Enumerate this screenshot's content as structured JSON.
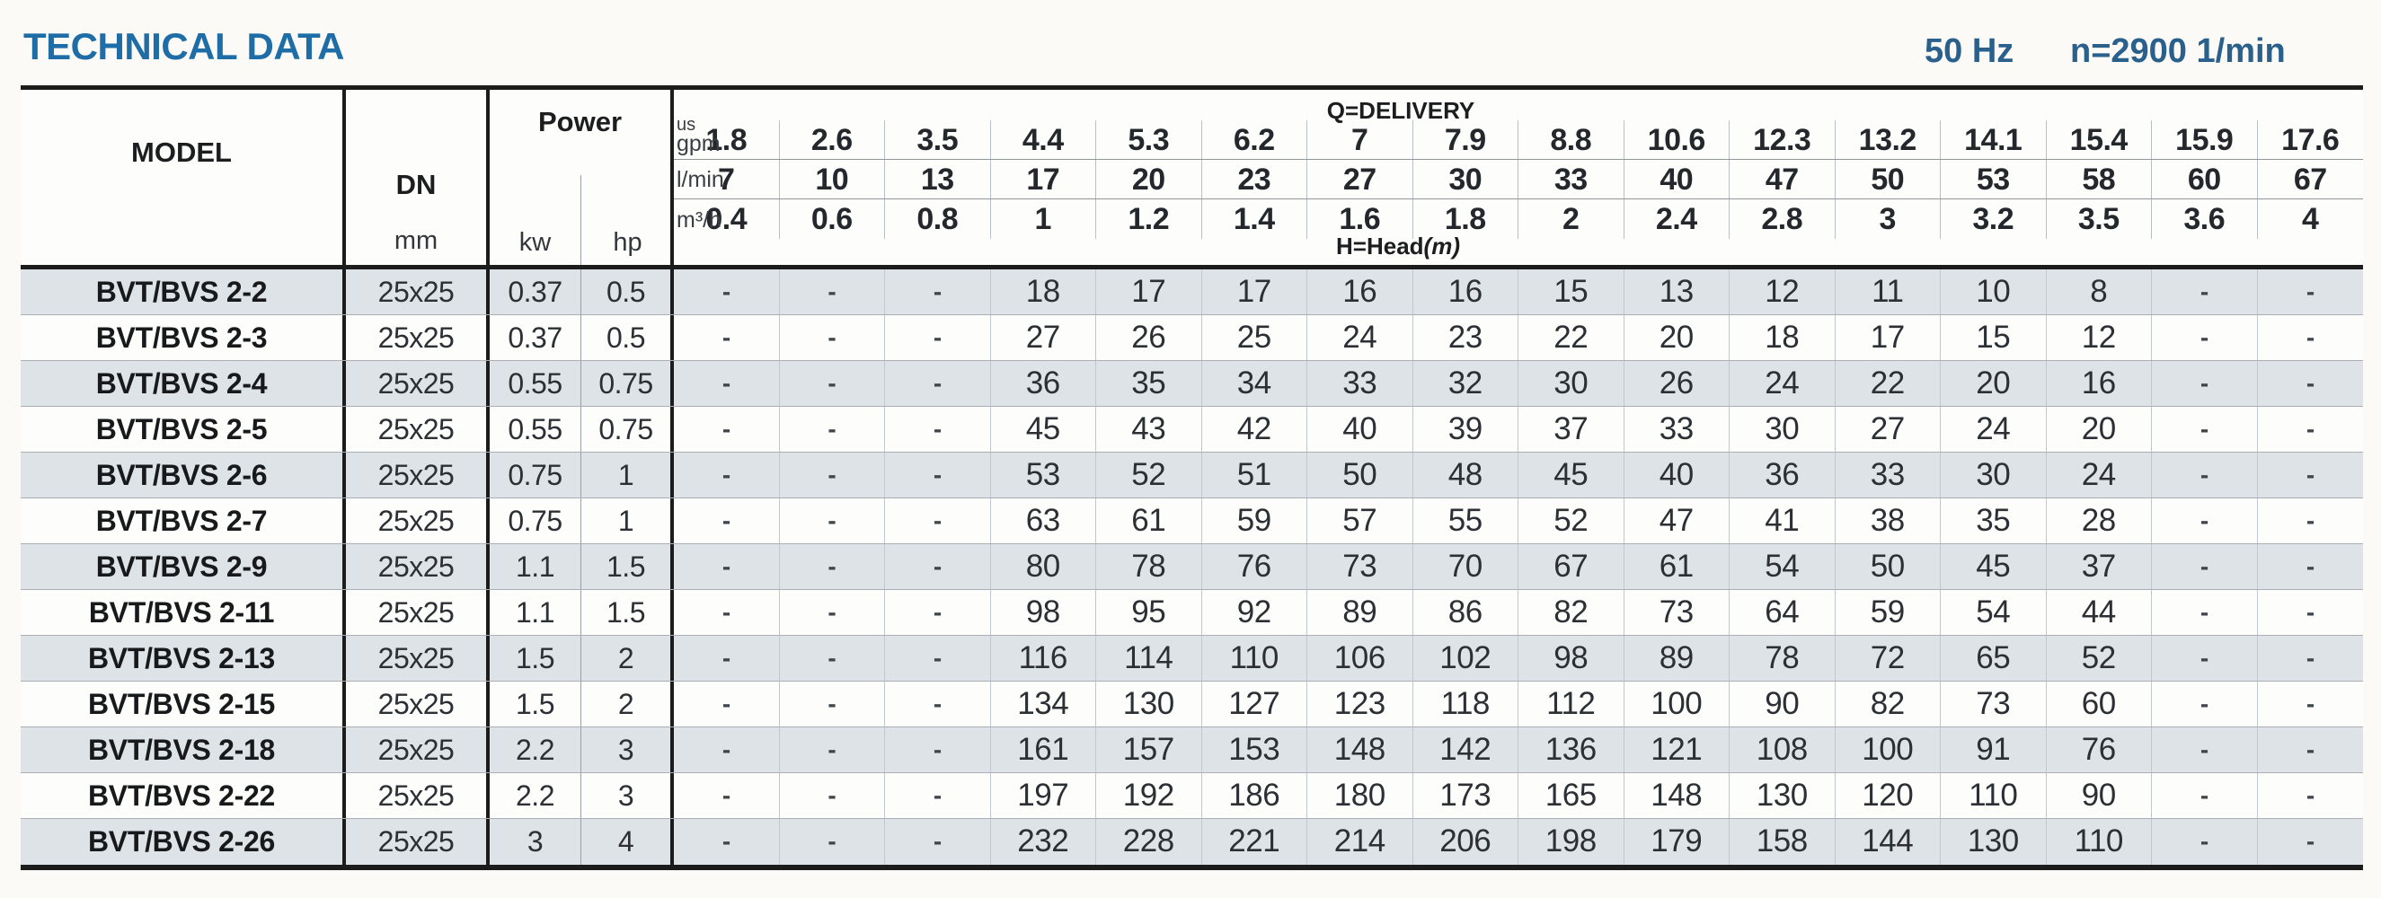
{
  "page": {
    "title": "TECHNICAL DATA",
    "frequency": "50 Hz",
    "speed": "n=2900 1/min"
  },
  "colors": {
    "accent_blue": "#1f6da6",
    "secondary_blue": "#2a608c",
    "row_shade": "#dee3e8",
    "border_dark": "#1c1c1c",
    "row_line": "#a9afb5",
    "column_line": "#c2c8cd"
  },
  "table": {
    "headers": {
      "model": "MODEL",
      "dn": "DN",
      "dn_unit": "mm",
      "power": "Power",
      "power_kw": "kw",
      "power_hp": "hp",
      "delivery_title": "Q=DELIVERY",
      "head_label": "H=Head",
      "head_unit": "(m)",
      "unit_rows": [
        {
          "label_top": "us",
          "label": "gpm",
          "values": [
            "1.8",
            "2.6",
            "3.5",
            "4.4",
            "5.3",
            "6.2",
            "7",
            "7.9",
            "8.8",
            "10.6",
            "12.3",
            "13.2",
            "14.1",
            "15.4",
            "15.9",
            "17.6"
          ]
        },
        {
          "label": "l/min",
          "values": [
            "7",
            "10",
            "13",
            "17",
            "20",
            "23",
            "27",
            "30",
            "33",
            "40",
            "47",
            "50",
            "53",
            "58",
            "60",
            "67"
          ]
        },
        {
          "label": "m³/h",
          "values": [
            "0.4",
            "0.6",
            "0.8",
            "1",
            "1.2",
            "1.4",
            "1.6",
            "1.8",
            "2",
            "2.4",
            "2.8",
            "3",
            "3.2",
            "3.5",
            "3.6",
            "4"
          ]
        }
      ]
    },
    "rows": [
      {
        "model": "BVT/BVS 2-2",
        "dn": "25x25",
        "kw": "0.37",
        "hp": "0.5",
        "head": [
          "-",
          "-",
          "-",
          "18",
          "17",
          "17",
          "16",
          "16",
          "15",
          "13",
          "12",
          "11",
          "10",
          "8",
          "-",
          "-"
        ]
      },
      {
        "model": "BVT/BVS 2-3",
        "dn": "25x25",
        "kw": "0.37",
        "hp": "0.5",
        "head": [
          "-",
          "-",
          "-",
          "27",
          "26",
          "25",
          "24",
          "23",
          "22",
          "20",
          "18",
          "17",
          "15",
          "12",
          "-",
          "-"
        ]
      },
      {
        "model": "BVT/BVS 2-4",
        "dn": "25x25",
        "kw": "0.55",
        "hp": "0.75",
        "head": [
          "-",
          "-",
          "-",
          "36",
          "35",
          "34",
          "33",
          "32",
          "30",
          "26",
          "24",
          "22",
          "20",
          "16",
          "-",
          "-"
        ]
      },
      {
        "model": "BVT/BVS 2-5",
        "dn": "25x25",
        "kw": "0.55",
        "hp": "0.75",
        "head": [
          "-",
          "-",
          "-",
          "45",
          "43",
          "42",
          "40",
          "39",
          "37",
          "33",
          "30",
          "27",
          "24",
          "20",
          "-",
          "-"
        ]
      },
      {
        "model": "BVT/BVS 2-6",
        "dn": "25x25",
        "kw": "0.75",
        "hp": "1",
        "head": [
          "-",
          "-",
          "-",
          "53",
          "52",
          "51",
          "50",
          "48",
          "45",
          "40",
          "36",
          "33",
          "30",
          "24",
          "-",
          "-"
        ]
      },
      {
        "model": "BVT/BVS 2-7",
        "dn": "25x25",
        "kw": "0.75",
        "hp": "1",
        "head": [
          "-",
          "-",
          "-",
          "63",
          "61",
          "59",
          "57",
          "55",
          "52",
          "47",
          "41",
          "38",
          "35",
          "28",
          "-",
          "-"
        ]
      },
      {
        "model": "BVT/BVS 2-9",
        "dn": "25x25",
        "kw": "1.1",
        "hp": "1.5",
        "head": [
          "-",
          "-",
          "-",
          "80",
          "78",
          "76",
          "73",
          "70",
          "67",
          "61",
          "54",
          "50",
          "45",
          "37",
          "-",
          "-"
        ]
      },
      {
        "model": "BVT/BVS 2-11",
        "dn": "25x25",
        "kw": "1.1",
        "hp": "1.5",
        "head": [
          "-",
          "-",
          "-",
          "98",
          "95",
          "92",
          "89",
          "86",
          "82",
          "73",
          "64",
          "59",
          "54",
          "44",
          "-",
          "-"
        ]
      },
      {
        "model": "BVT/BVS 2-13",
        "dn": "25x25",
        "kw": "1.5",
        "hp": "2",
        "head": [
          "-",
          "-",
          "-",
          "116",
          "114",
          "110",
          "106",
          "102",
          "98",
          "89",
          "78",
          "72",
          "65",
          "52",
          "-",
          "-"
        ]
      },
      {
        "model": "BVT/BVS 2-15",
        "dn": "25x25",
        "kw": "1.5",
        "hp": "2",
        "head": [
          "-",
          "-",
          "-",
          "134",
          "130",
          "127",
          "123",
          "118",
          "112",
          "100",
          "90",
          "82",
          "73",
          "60",
          "-",
          "-"
        ]
      },
      {
        "model": "BVT/BVS 2-18",
        "dn": "25x25",
        "kw": "2.2",
        "hp": "3",
        "head": [
          "-",
          "-",
          "-",
          "161",
          "157",
          "153",
          "148",
          "142",
          "136",
          "121",
          "108",
          "100",
          "91",
          "76",
          "-",
          "-"
        ]
      },
      {
        "model": "BVT/BVS 2-22",
        "dn": "25x25",
        "kw": "2.2",
        "hp": "3",
        "head": [
          "-",
          "-",
          "-",
          "197",
          "192",
          "186",
          "180",
          "173",
          "165",
          "148",
          "130",
          "120",
          "110",
          "90",
          "-",
          "-"
        ]
      },
      {
        "model": "BVT/BVS 2-26",
        "dn": "25x25",
        "kw": "3",
        "hp": "4",
        "head": [
          "-",
          "-",
          "-",
          "232",
          "228",
          "221",
          "214",
          "206",
          "198",
          "179",
          "158",
          "144",
          "130",
          "110",
          "-",
          "-"
        ]
      }
    ]
  }
}
